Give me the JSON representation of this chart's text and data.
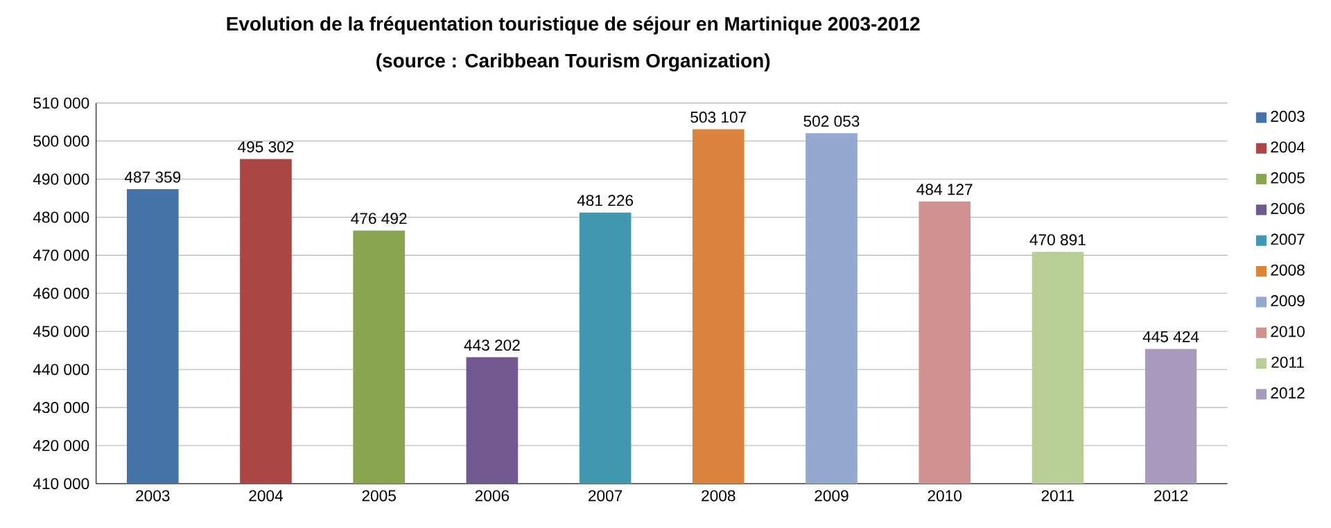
{
  "chart_data": {
    "type": "bar",
    "title": "Evolution de la fréquentation touristique de séjour en Martinique 2003-2012",
    "subtitle": "(source : Caribbean Tourism Organization)",
    "categories": [
      "2003",
      "2004",
      "2005",
      "2006",
      "2007",
      "2008",
      "2009",
      "2010",
      "2011",
      "2012"
    ],
    "series": [
      {
        "name": "2003",
        "color": "#4572a7",
        "values": [
          487359,
          null,
          null,
          null,
          null,
          null,
          null,
          null,
          null,
          null
        ]
      },
      {
        "name": "2004",
        "color": "#aa4643",
        "values": [
          null,
          495302,
          null,
          null,
          null,
          null,
          null,
          null,
          null,
          null
        ]
      },
      {
        "name": "2005",
        "color": "#89a54e",
        "values": [
          null,
          null,
          476492,
          null,
          null,
          null,
          null,
          null,
          null,
          null
        ]
      },
      {
        "name": "2006",
        "color": "#71588f",
        "values": [
          null,
          null,
          null,
          443202,
          null,
          null,
          null,
          null,
          null,
          null
        ]
      },
      {
        "name": "2007",
        "color": "#4198af",
        "values": [
          null,
          null,
          null,
          null,
          481226,
          null,
          null,
          null,
          null,
          null
        ]
      },
      {
        "name": "2008",
        "color": "#db843d",
        "values": [
          null,
          null,
          null,
          null,
          null,
          503107,
          null,
          null,
          null,
          null
        ]
      },
      {
        "name": "2009",
        "color": "#93a9cf",
        "values": [
          null,
          null,
          null,
          null,
          null,
          null,
          502053,
          null,
          null,
          null
        ]
      },
      {
        "name": "2010",
        "color": "#d19392",
        "values": [
          null,
          null,
          null,
          null,
          null,
          null,
          null,
          484127,
          null,
          null
        ]
      },
      {
        "name": "2011",
        "color": "#b9cd96",
        "values": [
          null,
          null,
          null,
          null,
          null,
          null,
          null,
          null,
          470891,
          null
        ]
      },
      {
        "name": "2012",
        "color": "#a99bbd",
        "values": [
          null,
          null,
          null,
          null,
          null,
          null,
          null,
          null,
          null,
          445424
        ]
      }
    ],
    "ylim": [
      410000,
      510000
    ],
    "yticks": [
      {
        "value": 410000,
        "label": "410 000"
      },
      {
        "value": 420000,
        "label": "420 000"
      },
      {
        "value": 430000,
        "label": "430 000"
      },
      {
        "value": 440000,
        "label": "440 000"
      },
      {
        "value": 450000,
        "label": "450 000"
      },
      {
        "value": 460000,
        "label": "460 000"
      },
      {
        "value": 470000,
        "label": "470 000"
      },
      {
        "value": 480000,
        "label": "480 000"
      },
      {
        "value": 490000,
        "label": "490 000"
      },
      {
        "value": 500000,
        "label": "500 000"
      },
      {
        "value": 510000,
        "label": "510 000"
      }
    ],
    "grid": "y",
    "legend": "right",
    "data_labels": true
  }
}
